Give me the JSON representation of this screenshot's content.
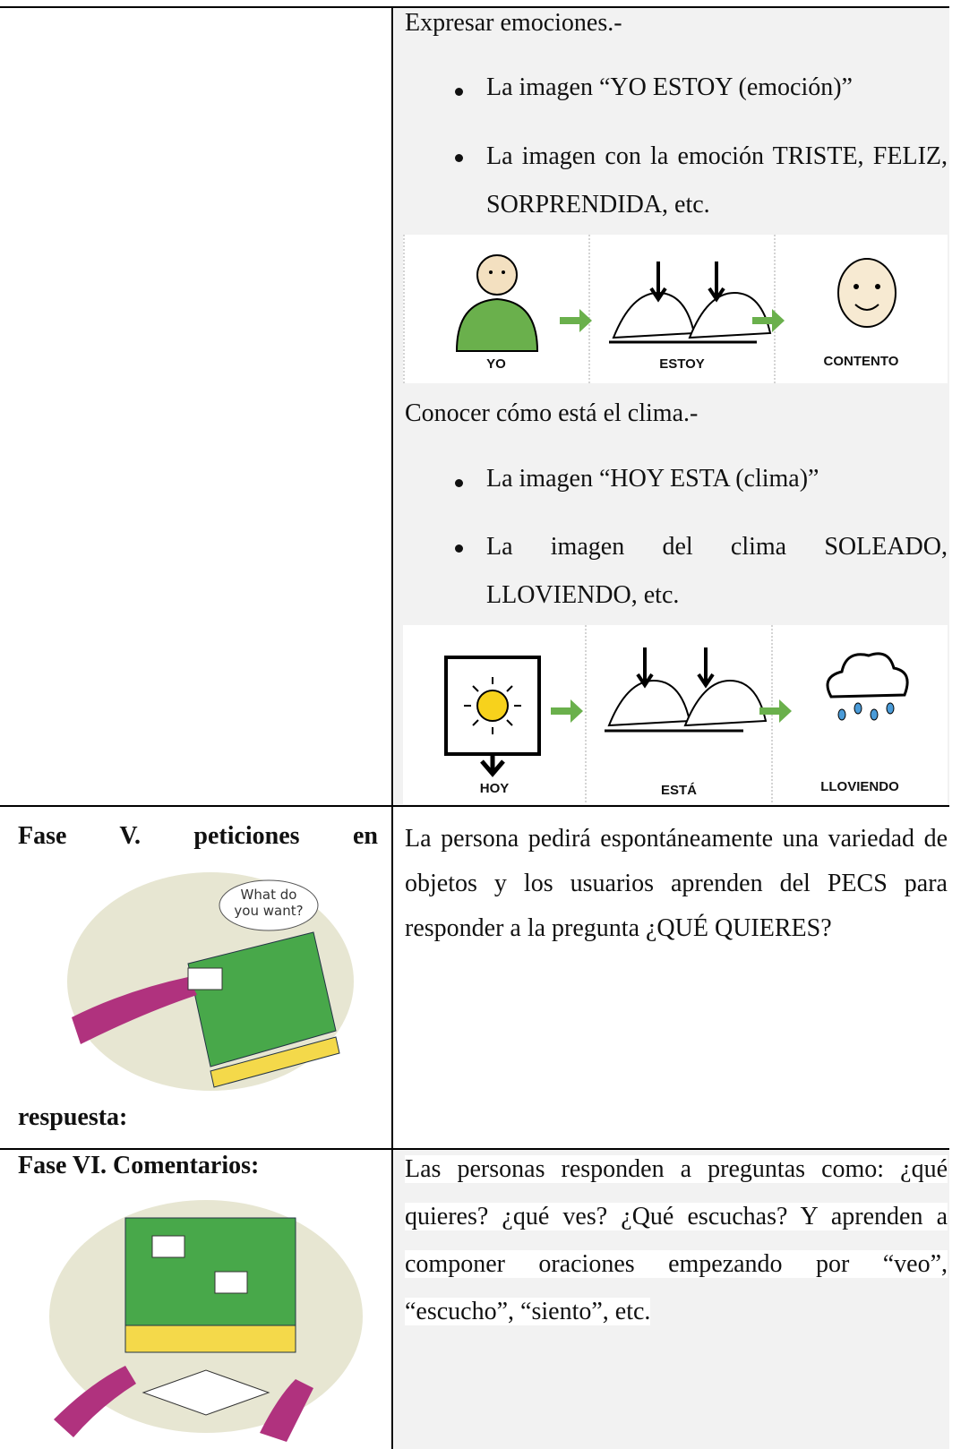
{
  "table": {
    "rows": [
      {
        "right": {
          "emotions": {
            "heading": "Expresar emociones.-",
            "bullets": [
              "La imagen “YO ESTOY  (emoción)”",
              "La imagen con la emoción TRISTE, FELIZ, SORPRENDIDA, etc."
            ],
            "pictograms": [
              "YO",
              "ESTOY",
              "CONTENTO"
            ]
          },
          "weather": {
            "heading": "Conocer cómo está el clima.-",
            "bullets": [
              "La imagen “HOY ESTA (clima)”",
              "La imagen del clima SOLEADO, LLOVIENDO, etc."
            ],
            "pictograms": [
              "HOY",
              "ESTÁ",
              "LLOVIENDO"
            ]
          }
        }
      },
      {
        "left": {
          "title": [
            "Fase V. peticiones en",
            "respuesta:"
          ],
          "image_text": [
            "What do",
            "you want?"
          ]
        },
        "right": {
          "text": "La persona pedirá espontáneamente una variedad de objetos y los usuarios aprenden del PECS para responder a la pregunta ¿QUÉ QUIERES?"
        }
      },
      {
        "left": {
          "title": "Fase VI. Comentarios:"
        },
        "right": {
          "text": "Las personas  responden a preguntas como: ¿qué quieres? ¿qué ves? ¿Qué escuchas? Y aprenden a componer oraciones empezando por “veo”, “escucho”, “siento”, etc."
        }
      }
    ]
  }
}
